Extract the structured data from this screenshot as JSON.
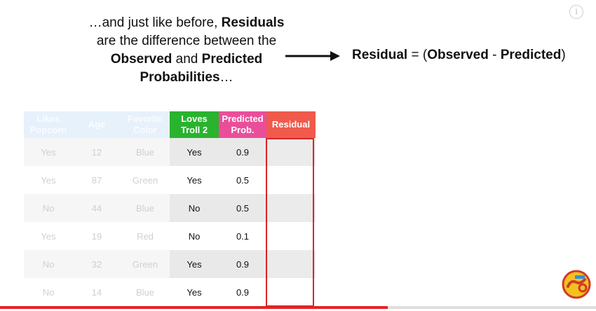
{
  "caption": {
    "line1_pre": "…and just like before, ",
    "line1_bold": "Residuals",
    "line2": "are the difference between the",
    "line3_bold1": "Observed",
    "line3_mid": " and ",
    "line3_bold2": "Predicted",
    "line4_bold": "Probabilities",
    "line4_post": "…"
  },
  "formula": {
    "term": "Residual",
    "eq": " = (",
    "observed": "Observed",
    "minus": " - ",
    "predicted": "Predicted",
    "close": ")"
  },
  "table": {
    "headers": {
      "popcorn": [
        "Likes",
        "Popcorn"
      ],
      "age": "Age",
      "color": [
        "Favorite",
        "Color"
      ],
      "loves": [
        "Loves",
        "Troll 2"
      ],
      "pred": [
        "Predicted",
        "Prob."
      ],
      "residual": "Residual"
    },
    "rows": [
      {
        "popcorn": "Yes",
        "age": "12",
        "color": "Blue",
        "loves": "Yes",
        "pred": "0.9"
      },
      {
        "popcorn": "Yes",
        "age": "87",
        "color": "Green",
        "loves": "Yes",
        "pred": "0.5"
      },
      {
        "popcorn": "No",
        "age": "44",
        "color": "Blue",
        "loves": "No",
        "pred": "0.5"
      },
      {
        "popcorn": "Yes",
        "age": "19",
        "color": "Red",
        "loves": "No",
        "pred": "0.1"
      },
      {
        "popcorn": "No",
        "age": "32",
        "color": "Green",
        "loves": "Yes",
        "pred": "0.9"
      },
      {
        "popcorn": "No",
        "age": "14",
        "color": "Blue",
        "loves": "Yes",
        "pred": "0.9"
      }
    ]
  },
  "player": {
    "info_glyph": "i",
    "progress_fraction": 0.65,
    "buffer_fraction": 0.0
  },
  "colors": {
    "loves_header": "#29b32e",
    "pred_header": "#ea4e9a",
    "residual_header": "#f05a4c",
    "highlight_box": "#d7262a",
    "progress": "#e52222"
  },
  "icons": {
    "arrow": "right-arrow-icon",
    "info": "info-icon",
    "logo": "channel-logo-icon"
  }
}
